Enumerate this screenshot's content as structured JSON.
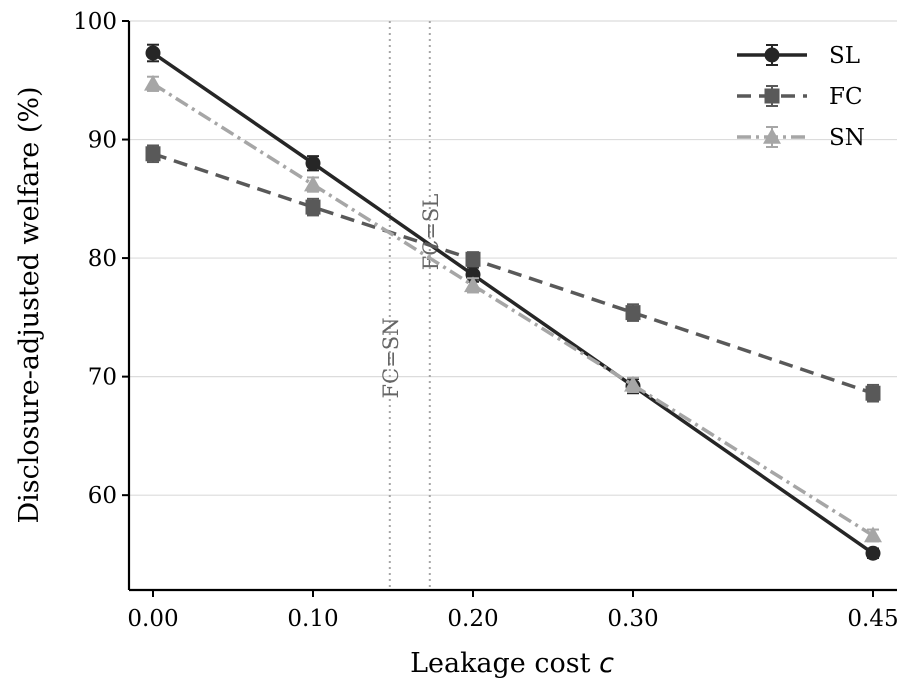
{
  "chart_data": {
    "type": "line",
    "xlabel": "Leakage cost",
    "xlabel_var": "c",
    "ylabel": "Disclosure-adjusted welfare (%)",
    "x": [
      0.0,
      0.1,
      0.2,
      0.3,
      0.45
    ],
    "x_tick_labels": [
      "0.00",
      "0.10",
      "0.20",
      "0.30",
      "0.45"
    ],
    "xlim": [
      -0.015,
      0.465
    ],
    "ylim": [
      52,
      100
    ],
    "y_ticks": [
      60,
      70,
      80,
      90,
      100
    ],
    "y_tick_labels": [
      "60",
      "70",
      "80",
      "90",
      "100"
    ],
    "grid": "horizontal",
    "legend_position": "top-right",
    "series": [
      {
        "name": "SL",
        "values": [
          97.3,
          88.0,
          78.6,
          69.2,
          55.1
        ],
        "errors": [
          0.7,
          0.6,
          0.6,
          0.6,
          0.4
        ],
        "color": "#262626",
        "marker": "circle",
        "dash": "solid"
      },
      {
        "name": "FC",
        "values": [
          88.8,
          84.3,
          79.9,
          75.4,
          68.6
        ],
        "errors": [
          0.7,
          0.7,
          0.6,
          0.7,
          0.7
        ],
        "color": "#595959",
        "marker": "square",
        "dash": "dashed"
      },
      {
        "name": "SN",
        "values": [
          94.7,
          86.2,
          77.7,
          69.3,
          56.6
        ],
        "errors": [
          0.6,
          0.6,
          0.6,
          0.6,
          0.5
        ],
        "color": "#a6a6a6",
        "marker": "triangle",
        "dash": "dashdot"
      }
    ],
    "annotations": [
      {
        "label": "FC=SN",
        "x": 0.148
      },
      {
        "label": "FC=SL",
        "x": 0.173
      }
    ]
  }
}
